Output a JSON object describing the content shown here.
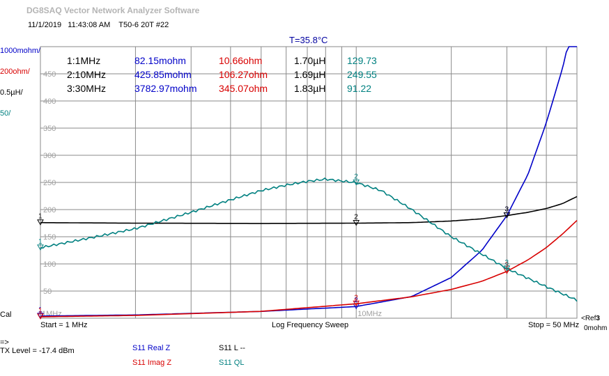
{
  "header": {
    "app_title": "DG8SAQ Vector Network Analyzer Software",
    "date": "11/1/2019",
    "time": "11:43:08 AM",
    "device": "T50-6 20T #22",
    "temperature": "T=35.8°C"
  },
  "scales": [
    {
      "label": "1000mohm/",
      "color": "#0000c8"
    },
    {
      "label": "200ohm/",
      "color": "#d80000"
    },
    {
      "label": "0.5µH/",
      "color": "#000000"
    },
    {
      "label": "50/",
      "color": "#008080"
    }
  ],
  "cal_label": "Cal",
  "markers": [
    {
      "freq": "1:1MHz",
      "real": "82.15mohm",
      "imag": "10.66ohm",
      "l": "1.70µH",
      "ql": "129.73"
    },
    {
      "freq": "2:10MHz",
      "real": "425.85mohm",
      "imag": "106.27ohm",
      "l": "1.69µH",
      "ql": "249.55"
    },
    {
      "freq": "3:30MHz",
      "real": "3782.97mohm",
      "imag": "345.07ohm",
      "l": "1.83µH",
      "ql": "91.22"
    }
  ],
  "footer": {
    "start": "Start = 1 MHz",
    "sweep": "Log Frequency Sweep",
    "stop": "Stop = 50 MHz",
    "ref_label": "<Ref",
    "ref_value": "3",
    "ref_unit": "0mohm",
    "arrow": "=>",
    "tx_level": "TX Level = -17.4 dBm"
  },
  "legend": [
    {
      "label": "S11  Real Z",
      "color": "#0000c8"
    },
    {
      "label": "S11  Imag Z",
      "color": "#d80000"
    },
    {
      "label": "S11  L --",
      "color": "#000000"
    },
    {
      "label": "S11  QL",
      "color": "#008080"
    }
  ],
  "colors": {
    "real": "#0000c8",
    "imag": "#d80000",
    "l": "#000000",
    "ql": "#008080",
    "grid": "#8a8a8a",
    "axis_text": "#a0a0a0"
  },
  "chart_data": {
    "type": "line",
    "xlabel": "Log Frequency Sweep",
    "x_scale": "log",
    "xlim": [
      1,
      50
    ],
    "x_tick_labels": [
      "1MHz",
      "10MHz"
    ],
    "y_tick_labels": [
      "50",
      "100",
      "150",
      "200",
      "250",
      "300",
      "350",
      "400",
      "450"
    ],
    "ylim_ql": [
      0,
      500
    ],
    "series": [
      {
        "key": "real",
        "unit": "ohm",
        "x": [
          1,
          2,
          5,
          10,
          15,
          20,
          25,
          30,
          35,
          40,
          45,
          50
        ],
        "y": [
          0.08,
          0.12,
          0.25,
          0.43,
          0.8,
          1.5,
          2.5,
          3.78,
          5.3,
          7.2,
          9.2,
          11.5
        ]
      },
      {
        "key": "imag",
        "unit": "ohm",
        "x": [
          1,
          2,
          5,
          10,
          15,
          20,
          25,
          30,
          35,
          40,
          45,
          50
        ],
        "y": [
          10.66,
          20.5,
          50.5,
          106.27,
          158,
          212,
          272,
          345.07,
          430,
          520,
          620,
          720
        ]
      },
      {
        "key": "l",
        "unit": "µH",
        "x": [
          1,
          2,
          5,
          10,
          15,
          20,
          25,
          30,
          35,
          40,
          45,
          50
        ],
        "y": [
          1.7,
          1.69,
          1.685,
          1.69,
          1.7,
          1.73,
          1.77,
          1.83,
          1.89,
          1.96,
          2.05,
          2.18
        ]
      },
      {
        "key": "ql",
        "unit": "",
        "x": [
          1,
          1.5,
          2,
          3,
          4,
          5,
          6,
          7,
          8,
          10,
          12,
          15,
          20,
          25,
          30,
          40,
          50
        ],
        "y": [
          129.73,
          150,
          165,
          195,
          218,
          235,
          245,
          252,
          256,
          249.55,
          235,
          200,
          150,
          118,
          91.22,
          58,
          33
        ]
      }
    ],
    "marker_freqs": [
      1,
      10,
      30
    ]
  }
}
